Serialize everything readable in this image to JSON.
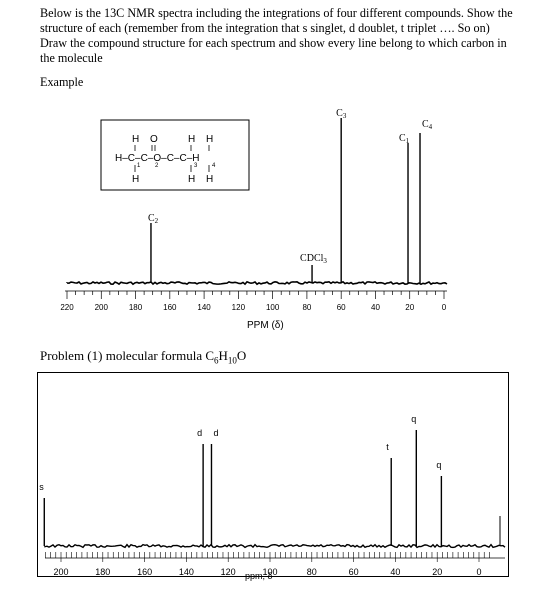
{
  "instructions": {
    "line1": "Below is the 13C NMR spectra including the integrations of four different compounds. Show the",
    "line2": "structure of each (remember from the integration that s singlet, d doublet, t triplet …. So on)",
    "line3": "Draw the compound structure for each spectrum and show every line belong to which carbon in",
    "line4": "the molecule"
  },
  "example_label": "Example",
  "example_spectrum": {
    "molecule": {
      "row1": "H  O       H  H",
      "row2": "H–C–C–O–C–C–H",
      "row3": "H              H  H",
      "subs": [
        "1",
        "2",
        "3",
        "4"
      ]
    },
    "peak_labels": [
      "C2",
      "CDCl3",
      "C3",
      "C1",
      "C4"
    ],
    "axis_ticks": [
      "220",
      "200",
      "180",
      "160",
      "140",
      "120",
      "100",
      "80",
      "60",
      "40",
      "20",
      "0"
    ],
    "axis_title": "PPM (δ)"
  },
  "problem": {
    "prefix": "Problem (1) molecular formula C",
    "c_count": "6",
    "h_label": "H",
    "h_count": "10",
    "o_label": "O"
  },
  "problem_spectrum": {
    "peak_marks": [
      "s",
      "d",
      "d",
      "t",
      "q",
      "q"
    ],
    "axis_ticks": [
      "200",
      "180",
      "160",
      "140",
      "120",
      "100",
      "80",
      "60",
      "40",
      "20",
      "0"
    ],
    "axis_title": "ppm, δ"
  },
  "chart_data": [
    {
      "type": "spectrum",
      "x_unit": "ppm",
      "xlim": [
        220,
        0
      ],
      "peaks": [
        {
          "label": "C2",
          "x": 171
        },
        {
          "label": "CDCl3",
          "x": 77
        },
        {
          "label": "C3",
          "x": 60
        },
        {
          "label": "C1",
          "x": 21
        },
        {
          "label": "C4",
          "x": 14
        }
      ]
    },
    {
      "type": "spectrum",
      "x_unit": "ppm",
      "xlim": [
        210,
        0
      ],
      "peaks": [
        {
          "label": "s",
          "x": 208
        },
        {
          "label": "d",
          "x": 132
        },
        {
          "label": "d",
          "x": 128
        },
        {
          "label": "t",
          "x": 42
        },
        {
          "label": "q",
          "x": 30
        },
        {
          "label": "q",
          "x": 18
        }
      ]
    }
  ]
}
